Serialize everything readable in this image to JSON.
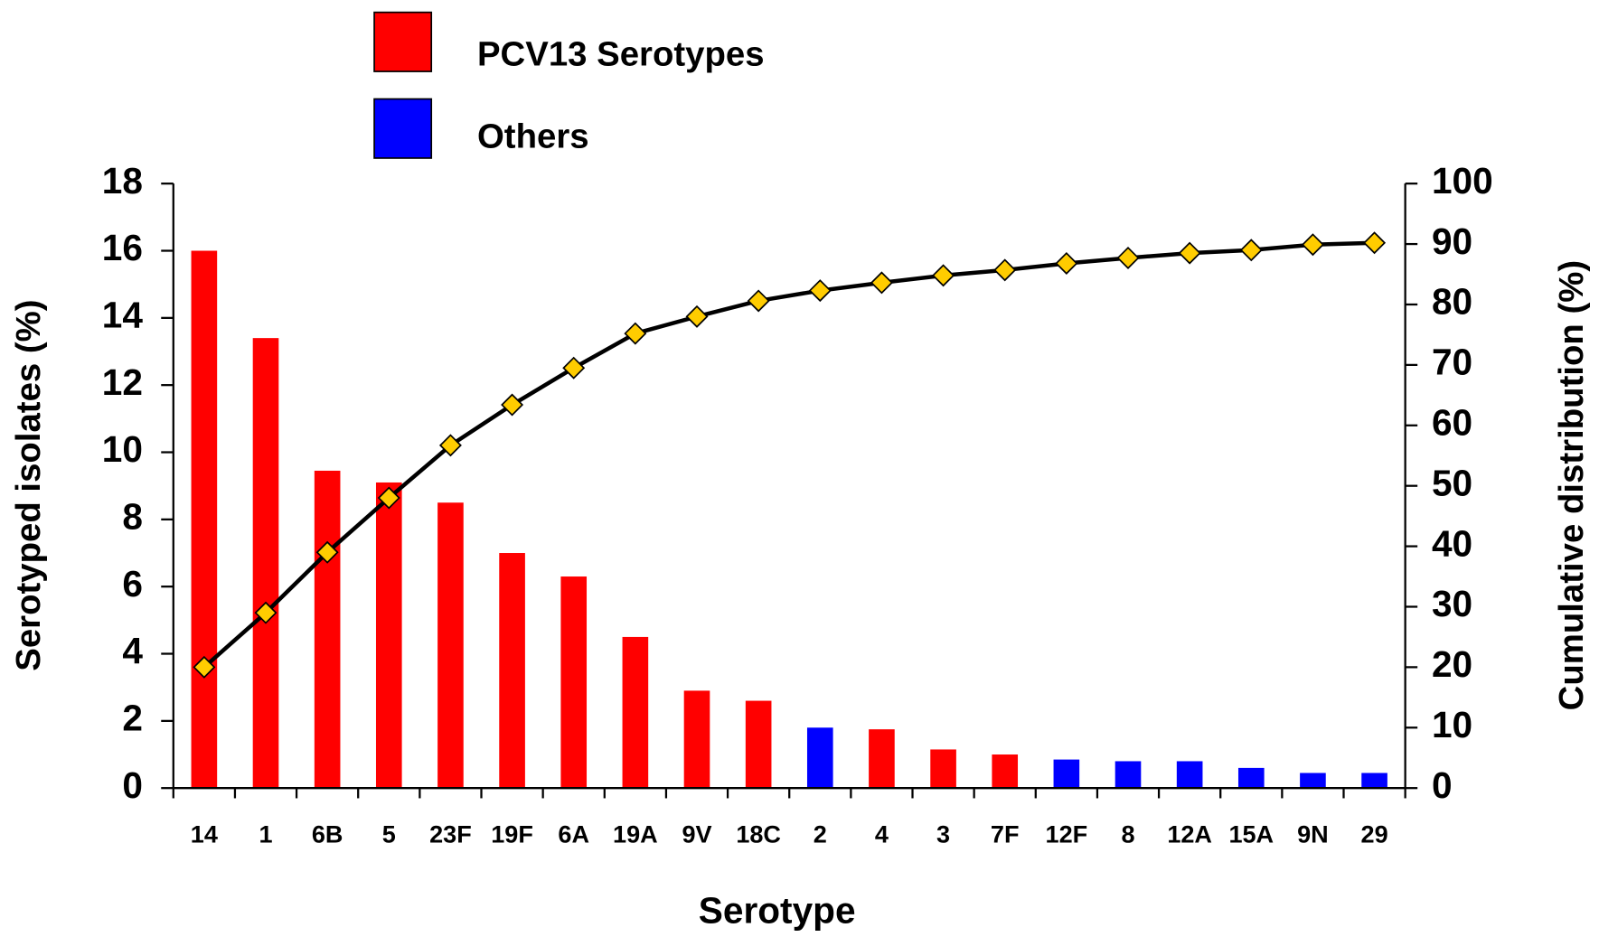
{
  "chart_data": {
    "type": "bar",
    "x_label": "Serotype",
    "y_label": "Serotyped isolates (%)",
    "y2_label": "Cumulative distribution (%)",
    "categories": [
      "14",
      "1",
      "6B",
      "5",
      "23F",
      "19F",
      "6A",
      "19A",
      "9V",
      "18C",
      "2",
      "4",
      "3",
      "7F",
      "12F",
      "8",
      "12A",
      "15A",
      "9N",
      "29"
    ],
    "series": [
      {
        "name": "PCV13 Serotypes",
        "color": "#ff0000",
        "values": [
          16.0,
          13.4,
          9.45,
          9.1,
          8.5,
          7.0,
          6.3,
          4.5,
          2.9,
          2.6,
          null,
          1.75,
          1.15,
          1.0,
          null,
          null,
          null,
          null,
          null,
          null
        ]
      },
      {
        "name": "Others",
        "color": "#0000ff",
        "values": [
          null,
          null,
          null,
          null,
          null,
          null,
          null,
          null,
          null,
          null,
          1.8,
          null,
          null,
          null,
          0.85,
          0.8,
          0.8,
          0.6,
          0.45,
          0.45
        ]
      }
    ],
    "line": {
      "type": "line",
      "axis": "y2",
      "color": "#000000",
      "marker_color": "#ffcc00",
      "values": [
        20,
        29,
        39,
        48,
        56.7,
        63.4,
        69.5,
        75.2,
        78,
        80.6,
        82.3,
        83.6,
        84.8,
        85.7,
        86.8,
        87.7,
        88.5,
        89,
        89.9,
        90.2
      ]
    },
    "ylim": [
      0,
      18
    ],
    "yticks": [
      0,
      2,
      4,
      6,
      8,
      10,
      12,
      14,
      16,
      18
    ],
    "y2lim": [
      0,
      100
    ],
    "y2ticks": [
      0,
      10,
      20,
      30,
      40,
      50,
      60,
      70,
      80,
      90,
      100
    ],
    "grid": false,
    "legend": "top"
  }
}
